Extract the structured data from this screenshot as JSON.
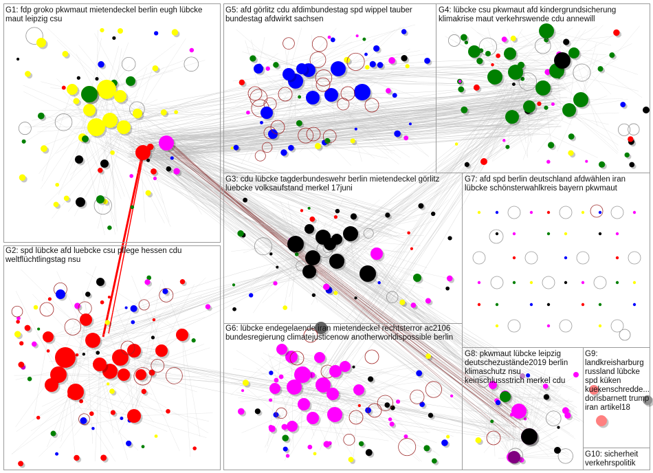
{
  "groups": [
    {
      "id": "G1",
      "label": "G1: fdp groko pkwmaut mietendeckel berlin eugh lübcke\nmaut leipzig csu",
      "color": "#ffff00"
    },
    {
      "id": "G2",
      "label": "G2: spd lübcke afd luebcke csu pflege hessen cdu\nweltflüchtlingstag nsu",
      "color": "#ff0000"
    },
    {
      "id": "G3",
      "label": "G3: cdu lübcke tagderbundeswehr berlin mietendeckel görlitz\nluebcke volksaufstand merkel 17juni",
      "color": "#000000"
    },
    {
      "id": "G4",
      "label": "G4: lübcke csu pkwmaut afd kindergrundsicherung\nklimakrise maut verkehrswende cdu annewill",
      "color": "#008000"
    },
    {
      "id": "G5",
      "label": "G5: afd görlitz cdu afdimbundestag spd wippel tauber\nbundestag afdwirkt sachsen",
      "color": "#0000ff"
    },
    {
      "id": "G6",
      "label": "G6: lübcke endegelaende iran mietendeckel rechtsterror ac2106\nbundesregierung climatejusticenow anotherworldispossible berlin",
      "color": "#ff00ff"
    },
    {
      "id": "G7",
      "label": "G7: afd spd berlin deutschland afdwählen iran\nlübcke schönsterwahlkreis bayern pkwmaut",
      "color": "#808080"
    },
    {
      "id": "G8",
      "label": "G8: pkwmaut lübcke leipzig\ndeutschezustände2019 berlin\nklimaschutz nsu\nkeinschlussstrich merkel cdu",
      "color": "#800080"
    },
    {
      "id": "G9",
      "label": "G9:\nlandkreisharburg\nrussland lübcke\nspd küken\nkuekenschredde...\ndorisbarnett trump\niran artikel18",
      "color": "#ff8080"
    },
    {
      "id": "G10",
      "label": "G10: sicherheit\nverkehrspolitik",
      "color": "#606060"
    }
  ]
}
